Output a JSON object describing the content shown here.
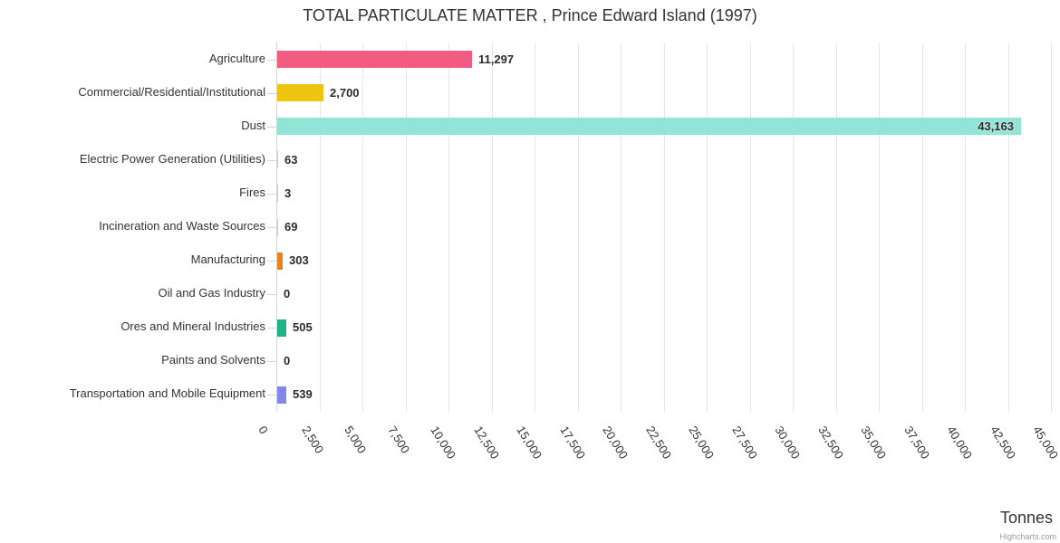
{
  "chart_data": {
    "type": "bar",
    "title": "TOTAL PARTICULATE MATTER , Prince Edward Island (1997)",
    "value_axis_title": "Tonnes",
    "orientation": "horizontal",
    "grid": true,
    "legend": "none",
    "value_axis_range": [
      0,
      45000
    ],
    "value_axis_tick_step": 2500,
    "categories": [
      "Agriculture",
      "Commercial/Residential/Institutional",
      "Dust",
      "Electric Power Generation (Utilities)",
      "Fires",
      "Incineration and Waste Sources",
      "Manufacturing",
      "Oil and Gas Industry",
      "Ores and Mineral Industries",
      "Paints and Solvents",
      "Transportation and Mobile Equipment"
    ],
    "values": [
      11297,
      2700,
      43163,
      63,
      3,
      69,
      303,
      0,
      505,
      0,
      539
    ],
    "value_labels": [
      "11,297",
      "2,700",
      "43,163",
      "63",
      "3",
      "69",
      "303",
      "0",
      "505",
      "0",
      "539"
    ],
    "bar_colors": [
      "#f15c80",
      "#eec411",
      "#92e5d6",
      "#cccccc",
      "#cccccc",
      "#cccccc",
      "#e8821e",
      "#cccccc",
      "#1cb486",
      "#cccccc",
      "#8287e9"
    ],
    "tick_values": [
      0,
      2500,
      5000,
      7500,
      10000,
      12500,
      15000,
      17500,
      20000,
      22500,
      25000,
      27500,
      30000,
      32500,
      35000,
      37500,
      40000,
      42500,
      45000
    ],
    "tick_labels": [
      "0",
      "2,500",
      "5,000",
      "7,500",
      "10,000",
      "12,500",
      "15,000",
      "17,500",
      "20,000",
      "22,500",
      "25,000",
      "27,500",
      "30,000",
      "32,500",
      "35,000",
      "37,500",
      "40,000",
      "42,500",
      "45,000"
    ],
    "colors_meta": {
      "grid_line": "#e6e6e6",
      "axis_line": "#ccd6eb",
      "text": "#333333",
      "data_label": "#2b2b2b",
      "credits_text": "#999999"
    }
  },
  "credits": "Highcharts.com"
}
